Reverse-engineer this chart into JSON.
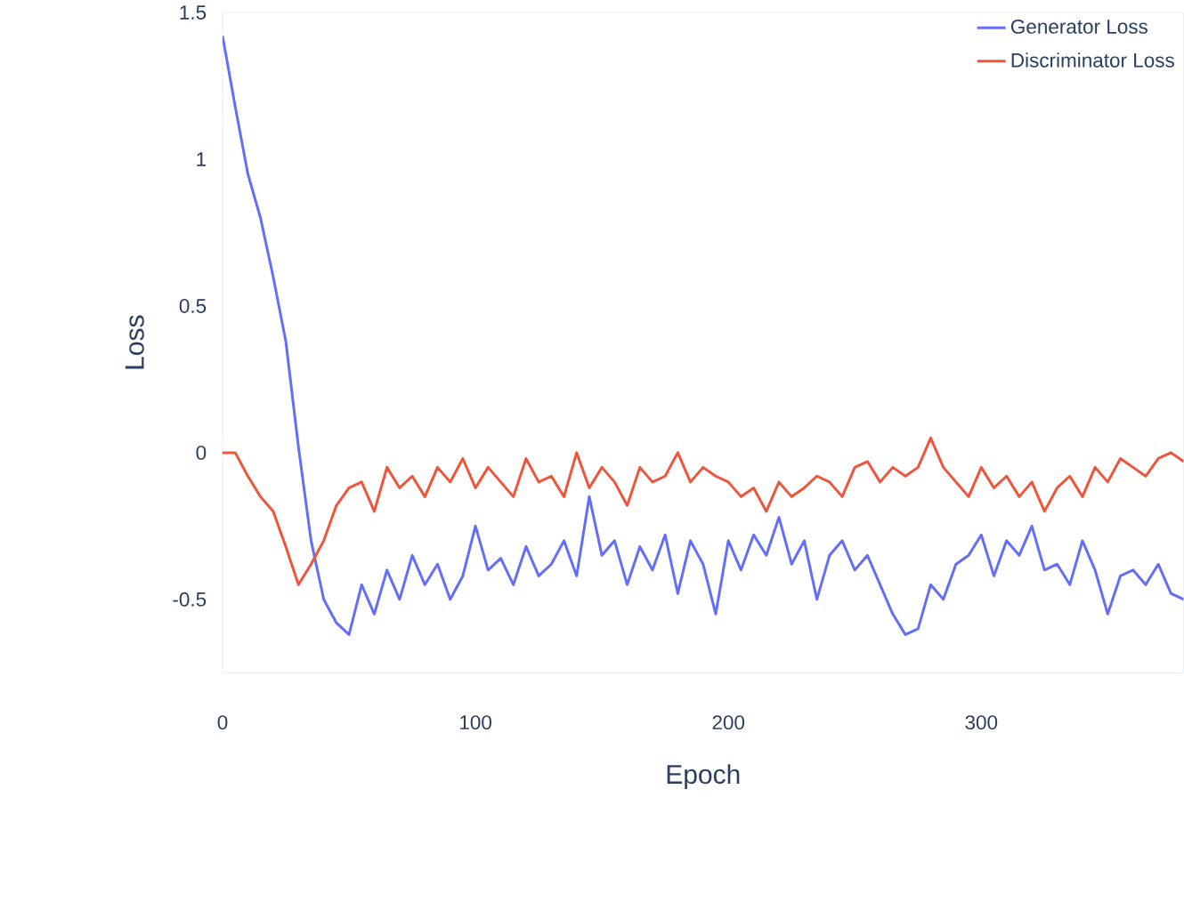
{
  "chart_data": {
    "type": "line",
    "xlabel": "Epoch",
    "ylabel": "Loss",
    "x": [
      0,
      5,
      10,
      15,
      20,
      25,
      30,
      35,
      40,
      45,
      50,
      55,
      60,
      65,
      70,
      75,
      80,
      85,
      90,
      95,
      100,
      105,
      110,
      115,
      120,
      125,
      130,
      135,
      140,
      145,
      150,
      155,
      160,
      165,
      170,
      175,
      180,
      185,
      190,
      195,
      200,
      205,
      210,
      215,
      220,
      225,
      230,
      235,
      240,
      245,
      250,
      255,
      260,
      265,
      270,
      275,
      280,
      285,
      290,
      295,
      300,
      305,
      310,
      315,
      320,
      325,
      330,
      335,
      340,
      345,
      350,
      355,
      360,
      365,
      370,
      375,
      380
    ],
    "series": [
      {
        "name": "Generator Loss",
        "color": "#636efa",
        "values": [
          1.42,
          1.18,
          0.95,
          0.8,
          0.6,
          0.38,
          0.02,
          -0.3,
          -0.5,
          -0.58,
          -0.62,
          -0.45,
          -0.55,
          -0.4,
          -0.5,
          -0.35,
          -0.45,
          -0.38,
          -0.5,
          -0.42,
          -0.25,
          -0.4,
          -0.36,
          -0.45,
          -0.32,
          -0.42,
          -0.38,
          -0.3,
          -0.42,
          -0.15,
          -0.35,
          -0.3,
          -0.45,
          -0.32,
          -0.4,
          -0.28,
          -0.48,
          -0.3,
          -0.38,
          -0.55,
          -0.3,
          -0.4,
          -0.28,
          -0.35,
          -0.22,
          -0.38,
          -0.3,
          -0.5,
          -0.35,
          -0.3,
          -0.4,
          -0.35,
          -0.45,
          -0.55,
          -0.62,
          -0.6,
          -0.45,
          -0.5,
          -0.38,
          -0.35,
          -0.28,
          -0.42,
          -0.3,
          -0.35,
          -0.25,
          -0.4,
          -0.38,
          -0.45,
          -0.3,
          -0.4,
          -0.55,
          -0.42,
          -0.4,
          -0.45,
          -0.38,
          -0.48,
          -0.5
        ]
      },
      {
        "name": "Discriminator Loss",
        "color": "#ef553b",
        "values": [
          0.0,
          0.0,
          -0.08,
          -0.15,
          -0.2,
          -0.32,
          -0.45,
          -0.38,
          -0.3,
          -0.18,
          -0.12,
          -0.1,
          -0.2,
          -0.05,
          -0.12,
          -0.08,
          -0.15,
          -0.05,
          -0.1,
          -0.02,
          -0.12,
          -0.05,
          -0.1,
          -0.15,
          -0.02,
          -0.1,
          -0.08,
          -0.15,
          0.0,
          -0.12,
          -0.05,
          -0.1,
          -0.18,
          -0.05,
          -0.1,
          -0.08,
          0.0,
          -0.1,
          -0.05,
          -0.08,
          -0.1,
          -0.15,
          -0.12,
          -0.2,
          -0.1,
          -0.15,
          -0.12,
          -0.08,
          -0.1,
          -0.15,
          -0.05,
          -0.03,
          -0.1,
          -0.05,
          -0.08,
          -0.05,
          0.05,
          -0.05,
          -0.1,
          -0.15,
          -0.05,
          -0.12,
          -0.08,
          -0.15,
          -0.1,
          -0.2,
          -0.12,
          -0.08,
          -0.15,
          -0.05,
          -0.1,
          -0.02,
          -0.05,
          -0.08,
          -0.02,
          0.0,
          -0.03
        ]
      }
    ],
    "xlim": [
      0,
      380
    ],
    "ylim": [
      -0.75,
      1.5
    ],
    "xticks": [
      0,
      100,
      200,
      300
    ],
    "yticks": [
      -0.5,
      0,
      0.5,
      1,
      1.5
    ],
    "legend": "top right",
    "line_style": "solid"
  }
}
